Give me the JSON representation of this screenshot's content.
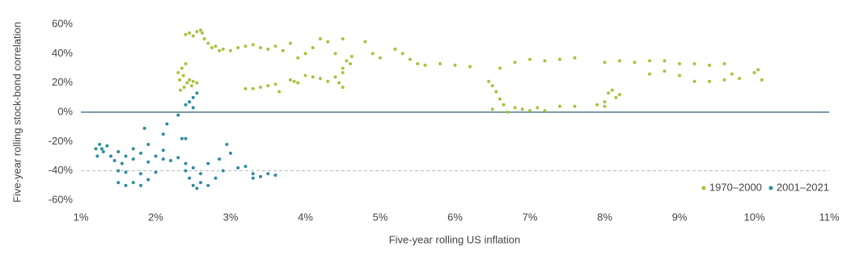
{
  "chart_data": {
    "type": "scatter",
    "x_label": "Five-year rolling US inflation",
    "y_label": "Five-year rolling stock-bond correlation",
    "xlim": [
      1,
      11
    ],
    "ylim": [
      -60,
      60
    ],
    "xticks": [
      {
        "value": 1,
        "label": "1%"
      },
      {
        "value": 2,
        "label": "2%"
      },
      {
        "value": 3,
        "label": "3%"
      },
      {
        "value": 4,
        "label": "4%"
      },
      {
        "value": 5,
        "label": "5%"
      },
      {
        "value": 6,
        "label": "6%"
      },
      {
        "value": 7,
        "label": "7%"
      },
      {
        "value": 8,
        "label": "8%"
      },
      {
        "value": 9,
        "label": "9%"
      },
      {
        "value": 10,
        "label": "10%"
      },
      {
        "value": 11,
        "label": "11%"
      }
    ],
    "yticks": [
      {
        "value": 60,
        "label": "60%"
      },
      {
        "value": 40,
        "label": "40%"
      },
      {
        "value": 20,
        "label": "20%"
      },
      {
        "value": 0,
        "label": "0%"
      },
      {
        "value": -20,
        "label": "-20%"
      },
      {
        "value": -40,
        "label": "-40%"
      },
      {
        "value": -60,
        "label": "-60%"
      }
    ],
    "reference_lines": [
      {
        "y": 0,
        "dashed": false,
        "color": "#2f5f6a"
      },
      {
        "y": -40,
        "dashed": true,
        "color": "#b8b8b8"
      }
    ],
    "legend": "bottom-right",
    "series": [
      {
        "name": "1970–2000",
        "color": "#a9c23c",
        "x": [
          2.3,
          2.32,
          2.35,
          2.37,
          2.4,
          2.42,
          2.45,
          2.48,
          2.5,
          2.38,
          2.33,
          2.55,
          2.4,
          2.45,
          2.5,
          2.55,
          2.6,
          2.62,
          2.65,
          2.7,
          2.75,
          2.8,
          2.85,
          2.9,
          3.0,
          3.1,
          3.2,
          3.3,
          3.4,
          3.5,
          3.6,
          3.7,
          3.8,
          3.9,
          4.0,
          4.1,
          4.2,
          4.3,
          4.4,
          4.5,
          4.5,
          4.55,
          4.6,
          4.62,
          4.5,
          3.2,
          3.3,
          3.4,
          3.5,
          3.6,
          3.65,
          3.8,
          3.85,
          3.9,
          4.0,
          4.1,
          4.2,
          4.3,
          4.4,
          4.5,
          4.45,
          4.8,
          4.9,
          5.0,
          5.2,
          5.3,
          5.4,
          5.5,
          5.6,
          5.8,
          6.0,
          6.2,
          6.45,
          6.5,
          6.55,
          6.6,
          6.65,
          6.5,
          6.7,
          6.8,
          6.9,
          7.0,
          7.1,
          7.2,
          7.4,
          7.6,
          6.6,
          6.8,
          7.0,
          7.2,
          7.4,
          7.6,
          7.9,
          8.0,
          8.05,
          8.1,
          8.15,
          8.2,
          8.0,
          8.0,
          8.2,
          8.4,
          8.6,
          8.8,
          9.0,
          9.2,
          9.4,
          9.6,
          8.6,
          8.8,
          9.0,
          9.2,
          9.4,
          9.6,
          9.8,
          10.0,
          10.05,
          10.1,
          9.7
        ],
        "y": [
          27,
          22,
          30,
          25,
          33,
          20,
          22,
          18,
          21,
          17,
          15,
          20,
          53,
          54,
          52,
          55,
          56,
          54,
          50,
          47,
          44,
          45,
          42,
          43,
          42,
          44,
          45,
          46,
          44,
          43,
          45,
          42,
          47,
          37,
          40,
          44,
          50,
          48,
          40,
          50,
          30,
          35,
          33,
          38,
          27,
          16,
          16,
          17,
          18,
          19,
          14,
          22,
          21,
          20,
          25,
          24,
          23,
          21,
          24,
          17,
          20,
          48,
          40,
          37,
          43,
          40,
          36,
          33,
          32,
          33,
          32,
          31,
          21,
          18,
          14,
          9,
          5,
          2,
          0,
          3,
          2,
          1,
          3,
          1,
          4,
          4,
          30,
          34,
          36,
          35,
          36,
          37,
          5,
          7,
          13,
          15,
          10,
          12,
          4,
          34,
          35,
          34,
          35,
          35,
          33,
          33,
          32,
          33,
          26,
          28,
          25,
          21,
          21,
          22,
          23,
          27,
          29,
          22,
          26
        ]
      },
      {
        "name": "2001–2021",
        "color": "#2f8d9c",
        "x": [
          1.2,
          1.25,
          1.3,
          1.35,
          1.4,
          1.22,
          1.28,
          1.45,
          1.5,
          1.55,
          1.6,
          1.7,
          1.8,
          1.9,
          2.0,
          2.1,
          2.2,
          2.3,
          2.4,
          1.5,
          1.6,
          1.8,
          2.0,
          1.7,
          1.9,
          2.1,
          1.5,
          1.6,
          1.7,
          1.8,
          1.9,
          1.85,
          2.1,
          2.15,
          2.3,
          2.35,
          2.4,
          2.4,
          2.45,
          2.5,
          2.55,
          2.5,
          2.4,
          2.45,
          2.5,
          2.55,
          2.6,
          2.7,
          2.8,
          2.9,
          2.5,
          2.6,
          2.7,
          2.85,
          2.95,
          3.0,
          3.1,
          3.2,
          3.3,
          3.4,
          3.5,
          3.6,
          3.3
        ],
        "y": [
          -25,
          -22,
          -27,
          -23,
          -30,
          -30,
          -25,
          -33,
          -27,
          -35,
          -30,
          -32,
          -28,
          -34,
          -30,
          -32,
          -33,
          -31,
          -35,
          -40,
          -41,
          -42,
          -41,
          -25,
          -22,
          -26,
          -48,
          -50,
          -48,
          -50,
          -46,
          -11,
          -15,
          -8,
          -2,
          -18,
          -18,
          5,
          7,
          10,
          13,
          3,
          -40,
          -45,
          -50,
          -52,
          -48,
          -50,
          -45,
          -40,
          -38,
          -42,
          -35,
          -32,
          -22,
          -28,
          -38,
          -37,
          -42,
          -44,
          -42,
          -43,
          -45
        ]
      }
    ]
  }
}
